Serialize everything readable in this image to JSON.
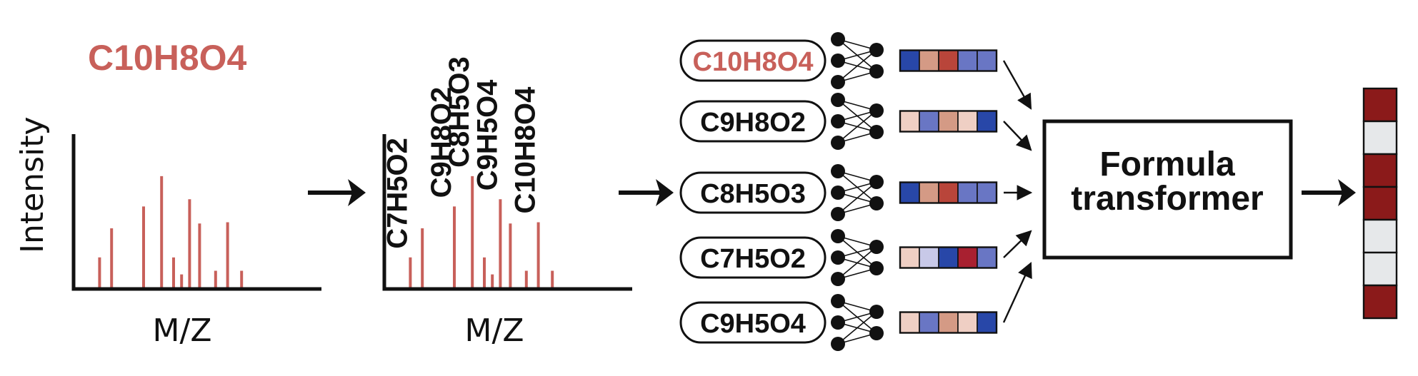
{
  "colors": {
    "accent": "#C8605A",
    "black": "#111111",
    "embedding_palette": {
      "dark_blue": "#2847A8",
      "mid_blue": "#6976C4",
      "light_blue": "#C8C9E8",
      "peach": "#EFCFC4",
      "salmon": "#D49A85",
      "red_brown": "#B9453A",
      "crimson": "#A82030",
      "dark_red": "#8B1A1A",
      "light_gray": "#E6E8EA"
    }
  },
  "spectrum_left": {
    "title": "C10H8O4",
    "ylabel": "Intensity",
    "xlabel": "M/Z",
    "peaks": [
      {
        "x": 0.13,
        "intensity": 0.26
      },
      {
        "x": 0.19,
        "intensity": 0.5
      },
      {
        "x": 0.35,
        "intensity": 0.68
      },
      {
        "x": 0.44,
        "intensity": 0.93
      },
      {
        "x": 0.5,
        "intensity": 0.26
      },
      {
        "x": 0.54,
        "intensity": 0.12
      },
      {
        "x": 0.58,
        "intensity": 0.74
      },
      {
        "x": 0.63,
        "intensity": 0.54
      },
      {
        "x": 0.71,
        "intensity": 0.15
      },
      {
        "x": 0.77,
        "intensity": 0.55
      },
      {
        "x": 0.84,
        "intensity": 0.15
      }
    ]
  },
  "spectrum_right": {
    "xlabel": "M/Z",
    "peaks": [
      {
        "x": 0.13,
        "intensity": 0.26,
        "label": "C7H5O2"
      },
      {
        "x": 0.19,
        "intensity": 0.5,
        "label": ""
      },
      {
        "x": 0.35,
        "intensity": 0.68,
        "label": "C9H8O2"
      },
      {
        "x": 0.44,
        "intensity": 0.93,
        "label": "C8H5O3"
      },
      {
        "x": 0.5,
        "intensity": 0.26,
        "label": ""
      },
      {
        "x": 0.54,
        "intensity": 0.12,
        "label": ""
      },
      {
        "x": 0.58,
        "intensity": 0.74,
        "label": "C9H5O4"
      },
      {
        "x": 0.63,
        "intensity": 0.54,
        "label": ""
      },
      {
        "x": 0.71,
        "intensity": 0.15,
        "label": ""
      },
      {
        "x": 0.77,
        "intensity": 0.55,
        "label": "C10H8O4"
      },
      {
        "x": 0.84,
        "intensity": 0.15,
        "label": ""
      }
    ]
  },
  "formulas": [
    {
      "label": "C10H8O4",
      "highlight": true,
      "embedding": [
        "dark_blue",
        "salmon",
        "red_brown",
        "mid_blue",
        "mid_blue"
      ]
    },
    {
      "label": "C9H8O2",
      "highlight": false,
      "embedding": [
        "peach",
        "mid_blue",
        "salmon",
        "peach",
        "dark_blue"
      ]
    },
    {
      "label": "C8H5O3",
      "highlight": false,
      "embedding": [
        "dark_blue",
        "salmon",
        "red_brown",
        "mid_blue",
        "mid_blue"
      ]
    },
    {
      "label": "C7H5O2",
      "highlight": false,
      "embedding": [
        "peach",
        "light_blue",
        "dark_blue",
        "crimson",
        "mid_blue"
      ]
    },
    {
      "label": "C9H5O4",
      "highlight": false,
      "embedding": [
        "peach",
        "mid_blue",
        "salmon",
        "peach",
        "dark_blue"
      ]
    }
  ],
  "transformer": {
    "line1": "Formula",
    "line2": "transformer"
  },
  "output_vector": [
    "dark_red",
    "light_gray",
    "dark_red",
    "dark_red",
    "light_gray",
    "light_gray",
    "dark_red"
  ]
}
